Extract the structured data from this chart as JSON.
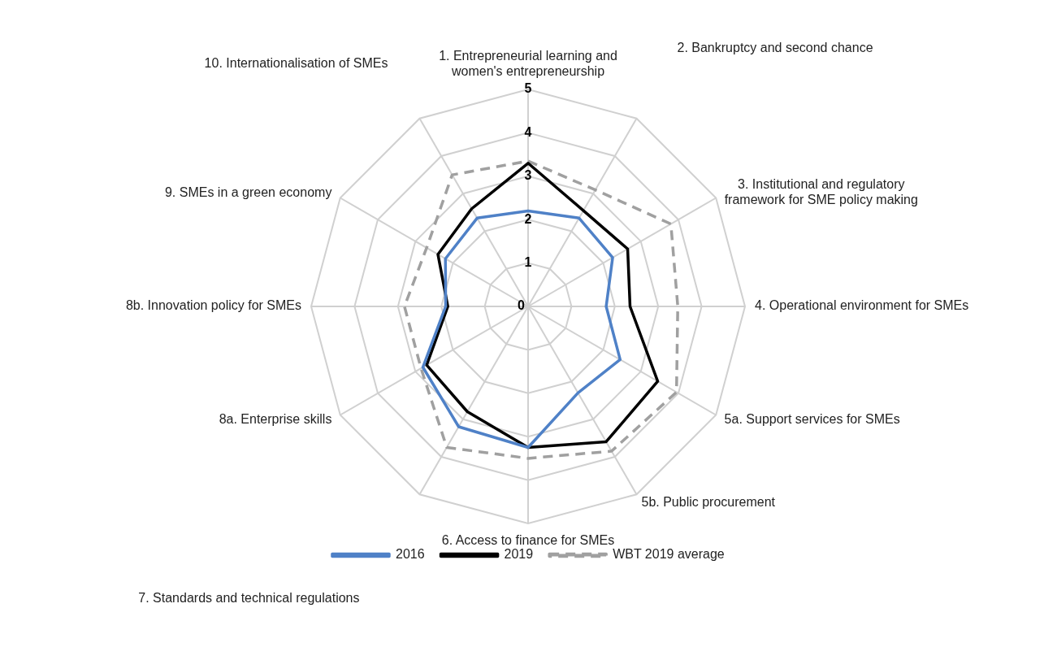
{
  "chart_data": {
    "type": "radar",
    "categories": [
      "1. Entrepreneurial learning and\nwomen's entrepreneurship",
      "2. Bankruptcy and second chance",
      "3. Institutional and regulatory\nframework for SME policy making",
      "4. Operational environment for SMEs",
      "5a. Support services for SMEs",
      "5b. Public procurement",
      "6. Access to finance for SMEs",
      "7. Standards and technical regulations",
      "8a. Enterprise skills",
      "8b. Innovation policy for SMEs",
      "9. SMEs in a green economy",
      "10. Internationalisation of SMEs"
    ],
    "series": [
      {
        "name": "2016",
        "color": "#4f81c7",
        "values": [
          2.2,
          2.35,
          2.25,
          1.8,
          2.45,
          2.3,
          3.25,
          3.2,
          2.8,
          1.9,
          2.2,
          2.35
        ]
      },
      {
        "name": "2019",
        "color": "#000000",
        "values": [
          3.3,
          2.55,
          2.65,
          2.35,
          3.45,
          3.6,
          3.25,
          2.8,
          2.7,
          1.85,
          2.4,
          2.6
        ]
      },
      {
        "name": "WBT 2019 average",
        "color": "#a0a0a0",
        "line_style": "dashed",
        "values": [
          3.35,
          3.1,
          3.8,
          3.45,
          3.95,
          3.85,
          3.5,
          3.75,
          2.85,
          2.85,
          2.7,
          3.5
        ]
      }
    ],
    "ylim": [
      0,
      5
    ],
    "yticks": [
      0,
      1,
      2,
      3,
      4,
      5
    ],
    "grid": true,
    "legend": "bottom",
    "marker": "none"
  }
}
